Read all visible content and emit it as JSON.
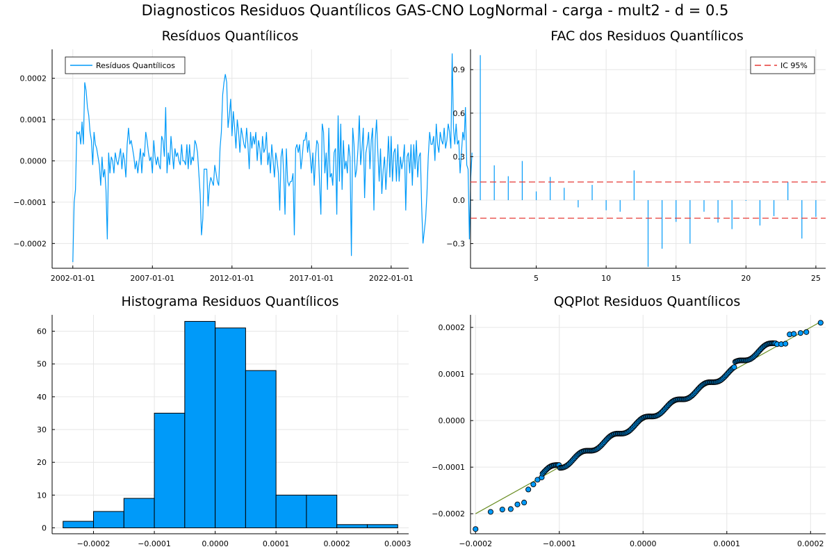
{
  "figure": {
    "title": "Diagnosticos Residuos  Quantílicos GAS-CNO LogNormal - carga - mult2 - d = 0.5"
  },
  "colors": {
    "series": "#009af9",
    "ci": "#e26f46",
    "ci_line": "#e53935",
    "qq_line": "#6b8e23",
    "grid": "#e6e6e6",
    "axis": "#000000"
  },
  "chart_data": [
    {
      "id": "residuals",
      "type": "line",
      "title": "Resíduos  Quantílicos",
      "legend": {
        "position": "top-left",
        "entries": [
          "Resíduos Quantílicos"
        ]
      },
      "x_ticks": [
        "2002-01-01",
        "2007-01-01",
        "2012-01-01",
        "2017-01-01",
        "2022-01-01"
      ],
      "x_tick_years": [
        2002,
        2007,
        2012,
        2017,
        2022
      ],
      "xlim_years": [
        2000.7,
        2023.1
      ],
      "y_ticks": [
        -0.0002,
        -0.0001,
        0.0,
        0.0001,
        0.0002
      ],
      "y_tick_labels": [
        "−0.0002",
        "−0.0001",
        "0.0000",
        "0.0001",
        "0.0002"
      ],
      "ylim": [
        -0.00026,
        0.00027
      ],
      "grid": true,
      "series": [
        {
          "name": "Resíduos Quantílicos",
          "start_year": 2002.0,
          "step_years": 0.0833333,
          "values": [
            -0.000245,
            -0.0001,
            -7e-05,
            7e-05,
            6.5e-05,
            7e-05,
            4e-05,
            9.5e-05,
            4e-05,
            0.00019,
            0.00017,
            0.00013,
            0.00011,
            7e-05,
            5e-05,
            -1e-05,
            7e-05,
            4e-05,
            3e-05,
            1e-05,
            -1e-05,
            -6e-05,
            1e-05,
            -4e-05,
            -2e-05,
            -7e-05,
            -0.00019,
            2e-05,
            -3e-05,
            1e-05,
            0.0,
            -3e-05,
            2e-05,
            0.0,
            -1e-05,
            1e-05,
            3e-05,
            -2e-05,
            2e-05,
            0.0,
            -4e-05,
            4e-05,
            8e-05,
            4e-05,
            5e-05,
            3e-05,
            1e-05,
            -2e-05,
            0.0,
            -3e-05,
            0.0,
            3e-05,
            -3e-05,
            2e-05,
            1e-05,
            7e-05,
            5e-05,
            2e-05,
            0.0,
            1e-05,
            -3e-05,
            5e-05,
            1e-05,
            -1e-05,
            1e-05,
            -1e-05,
            -2e-05,
            6e-05,
            5e-05,
            1e-05,
            0.00013,
            -3e-05,
            2e-05,
            -1e-05,
            6e-05,
            2e-05,
            -2e-05,
            3e-05,
            1e-05,
            2e-05,
            0.0,
            -1e-05,
            4e-05,
            0.0,
            0.0,
            -1e-05,
            4e-05,
            -2e-05,
            4e-05,
            -1e-05,
            1e-05,
            0.0,
            5e-05,
            4e-05,
            2e-05,
            -3e-05,
            -8e-05,
            -0.00018,
            -0.00014,
            -2e-05,
            -2e-05,
            -2e-05,
            -0.00011,
            -6e-05,
            -4e-05,
            -5e-05,
            -6e-05,
            -1e-05,
            -3e-05,
            -5e-05,
            -6e-05,
            3e-05,
            7e-05,
            0.00016,
            0.00019,
            0.00021,
            0.00019,
            8e-05,
            0.00011,
            0.00015,
            6e-05,
            0.00012,
            8e-05,
            3e-05,
            0.0001,
            7e-05,
            2e-05,
            8e-05,
            6e-05,
            4e-05,
            3e-05,
            8e-05,
            4e-05,
            -2e-05,
            7e-05,
            3e-05,
            6e-05,
            4e-05,
            7e-05,
            0.0,
            5e-05,
            3e-05,
            -1e-05,
            6e-05,
            2e-05,
            3e-05,
            7e-05,
            -1e-05,
            2e-05,
            -3e-05,
            4e-05,
            0.0,
            -4e-05,
            2e-05,
            0.0,
            -3e-05,
            -0.00012,
            1e-05,
            3e-05,
            -3e-05,
            -0.00013,
            3e-05,
            -5e-05,
            -6e-05,
            -5e-05,
            -5e-05,
            -3e-05,
            -0.00018,
            3e-05,
            4e-05,
            2e-05,
            4e-05,
            -2e-05,
            1e-05,
            5e-05,
            5e-05,
            7e-05,
            2e-05,
            5e-05,
            1e-05,
            -3e-05,
            2e-05,
            -6e-05,
            1e-05,
            5e-05,
            4e-05,
            -5e-05,
            -0.00013,
            9e-05,
            7e-05,
            -3e-05,
            2e-05,
            -7e-05,
            8e-05,
            -4e-05,
            -3e-05,
            -6e-05,
            2e-05,
            3e-05,
            -0.00013,
            0.00011,
            -5e-05,
            9e-05,
            -7e-05,
            5e-05,
            -2e-05,
            0.0,
            -3e-05,
            4e-05,
            1e-05,
            -0.00023,
            8e-05,
            4e-05,
            -4e-05,
            -2e-05,
            3e-05,
            0.00011,
            -1e-05,
            3e-05,
            8e-05,
            -9e-05,
            2e-05,
            4e-05,
            7e-05,
            -2e-05,
            5e-05,
            8e-05,
            -0.00012,
            5e-05,
            0.0001,
            2e-05,
            -5e-05,
            3e-05,
            -8e-05,
            -2e-05,
            1e-05,
            -7e-05,
            -1e-05,
            6e-05,
            -4e-05,
            6e-05,
            -5e-05,
            2e-05,
            3e-05,
            -5e-05,
            4e-05,
            -5e-05,
            1e-05,
            -2e-05,
            0.0,
            4e-05,
            -0.00012,
            1e-05,
            2e-05,
            -3e-05,
            4e-05,
            -6e-05,
            4e-05,
            -2e-05,
            5e-05,
            -4e-05,
            1e-05,
            2e-05,
            -0.00011,
            -0.0002,
            -0.00017,
            -0.00014,
            -8e-05,
            1e-05,
            7e-05,
            4e-05,
            4e-05,
            6e-05,
            0.0,
            9e-05,
            4e-05,
            2e-05,
            7e-05,
            5e-05,
            4e-05,
            8e-05,
            3e-05,
            5e-05,
            9e-05,
            7e-05,
            3e-05,
            0.00026,
            8e-05,
            4e-05,
            9e-05,
            4e-05,
            5e-05,
            -3e-05,
            2e-05,
            7e-05,
            5e-05,
            0.00013,
            -1e-05,
            -2e-05,
            -0.00019,
            -4e-05,
            2e-05
          ]
        }
      ]
    },
    {
      "id": "acf",
      "type": "bar",
      "title": "FAC dos Residuos Quantílicos",
      "legend": {
        "position": "top-right",
        "entries": [
          "IC 95%"
        ]
      },
      "x_ticks": [
        5,
        10,
        15,
        20,
        25
      ],
      "xlim": [
        0.3,
        25.7
      ],
      "y_ticks": [
        -0.3,
        0.0,
        0.3,
        0.6,
        0.9
      ],
      "y_tick_labels": [
        "−0.3",
        "0.0",
        "0.3",
        "0.6",
        "0.9"
      ],
      "ylim": [
        -0.47,
        1.04
      ],
      "grid": true,
      "ci": 0.125,
      "lags": [
        1,
        2,
        3,
        4,
        5,
        6,
        7,
        8,
        9,
        10,
        11,
        12,
        13,
        14,
        15,
        16,
        17,
        18,
        19,
        20,
        21,
        22,
        23,
        24,
        25
      ],
      "values": [
        1.0,
        0.24,
        0.165,
        0.27,
        0.06,
        0.16,
        0.085,
        -0.05,
        0.105,
        -0.07,
        -0.08,
        0.205,
        -0.46,
        -0.335,
        -0.15,
        -0.3,
        -0.08,
        -0.155,
        -0.2,
        -0.005,
        -0.175,
        -0.11,
        0.125,
        -0.265,
        -0.115
      ]
    },
    {
      "id": "histogram",
      "type": "bar",
      "title": "Histograma Residuos Quantílicos",
      "x_ticks": [
        -0.0002,
        -0.0001,
        0.0,
        0.0001,
        0.0002,
        0.0003
      ],
      "x_tick_labels": [
        "−0.0002",
        "−0.0001",
        "0.0000",
        "0.0001",
        "0.0002",
        "0.0003"
      ],
      "xlim": [
        -0.000268,
        0.000318
      ],
      "y_ticks": [
        0,
        10,
        20,
        30,
        40,
        50,
        60
      ],
      "ylim": [
        -1.8,
        65
      ],
      "grid": true,
      "bin_edges": [
        -0.00025,
        -0.0002,
        -0.00015,
        -0.0001,
        -5e-05,
        0.0,
        5e-05,
        0.0001,
        0.00015,
        0.0002,
        0.00025,
        0.0003
      ],
      "counts": [
        2,
        5,
        9,
        35,
        63,
        61,
        48,
        10,
        10,
        1,
        1
      ]
    },
    {
      "id": "qqplot",
      "type": "scatter",
      "title": "QQPlot Residuos Quantílicos",
      "x_ticks": [
        -0.0002,
        -0.0001,
        0.0,
        0.0001,
        0.0002
      ],
      "x_tick_labels": [
        "−0.0002",
        "−0.0001",
        "0.0000",
        "0.0001",
        "0.0002"
      ],
      "xlim": [
        -0.000206,
        0.000218
      ],
      "y_ticks": [
        -0.0002,
        -0.0001,
        0.0,
        0.0001,
        0.0002
      ],
      "y_tick_labels": [
        "−0.0002",
        "−0.0001",
        "0.0000",
        "0.0001",
        "0.0002"
      ],
      "ylim": [
        -0.000243,
        0.000227
      ],
      "grid": true,
      "reference_line": {
        "x": [
          -0.0002,
          0.00021
        ],
        "y": [
          -0.0002,
          0.00021
        ]
      },
      "n_points": 245,
      "theoretical_range": [
        -0.0002,
        0.00021
      ],
      "x_outliers": [
        -0.0002,
        -0.000182,
        -0.000168,
        -0.000158,
        -0.00015,
        -0.000142,
        -0.000137,
        -0.000131,
        -0.000126,
        -0.000121
      ],
      "y_outliers": [
        -0.000233,
        -0.000196,
        -0.000191,
        -0.00019,
        -0.00018,
        -0.000176,
        -0.000148,
        -0.000137,
        -0.000127,
        -0.000122
      ],
      "upper_x": [
        0.00016,
        0.000165,
        0.00017,
        0.000175,
        0.00018,
        0.000188,
        0.000195,
        0.000212
      ],
      "upper_y": [
        0.000164,
        0.000164,
        0.000165,
        0.000185,
        0.000186,
        0.000188,
        0.00019,
        0.00021
      ]
    }
  ]
}
